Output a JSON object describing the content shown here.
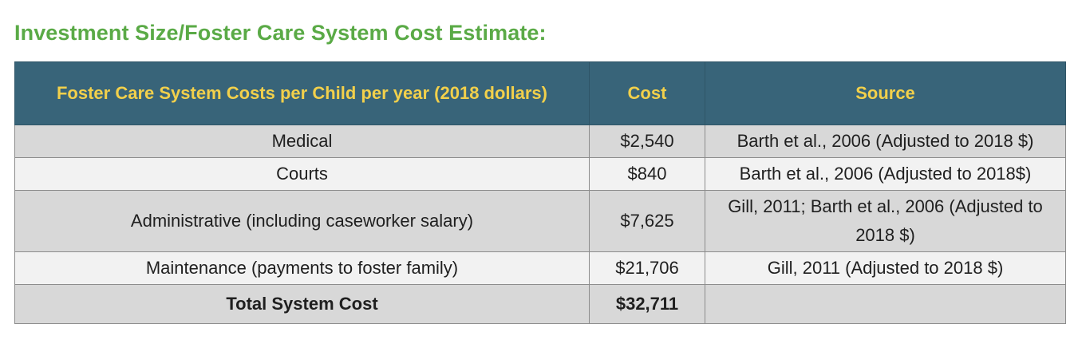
{
  "title": "Investment Size/Foster Care System Cost Estimate:",
  "table": {
    "headers": [
      "Foster Care System Costs per Child per year (2018 dollars)",
      "Cost",
      "Source"
    ],
    "rows": [
      {
        "item": "Medical",
        "cost": "$2,540",
        "source": "Barth et al., 2006 (Adjusted to 2018 $)"
      },
      {
        "item": "Courts",
        "cost": "$840",
        "source": "Barth et al., 2006 (Adjusted to 2018$)"
      },
      {
        "item": "Administrative (including caseworker salary)",
        "cost": "$7,625",
        "source": "Gill, 2011; Barth et al., 2006 (Adjusted to 2018 $)"
      },
      {
        "item": "Maintenance (payments to foster family)",
        "cost": "$21,706",
        "source": "Gill, 2011 (Adjusted to 2018 $)"
      },
      {
        "item": "Total System Cost",
        "cost": "$32,711",
        "source": ""
      }
    ]
  },
  "colors": {
    "title": "#5aaa46",
    "header_bg": "#386479",
    "header_text": "#f2d04b",
    "row_dark": "#d8d8d8",
    "row_light": "#f2f2f2"
  }
}
